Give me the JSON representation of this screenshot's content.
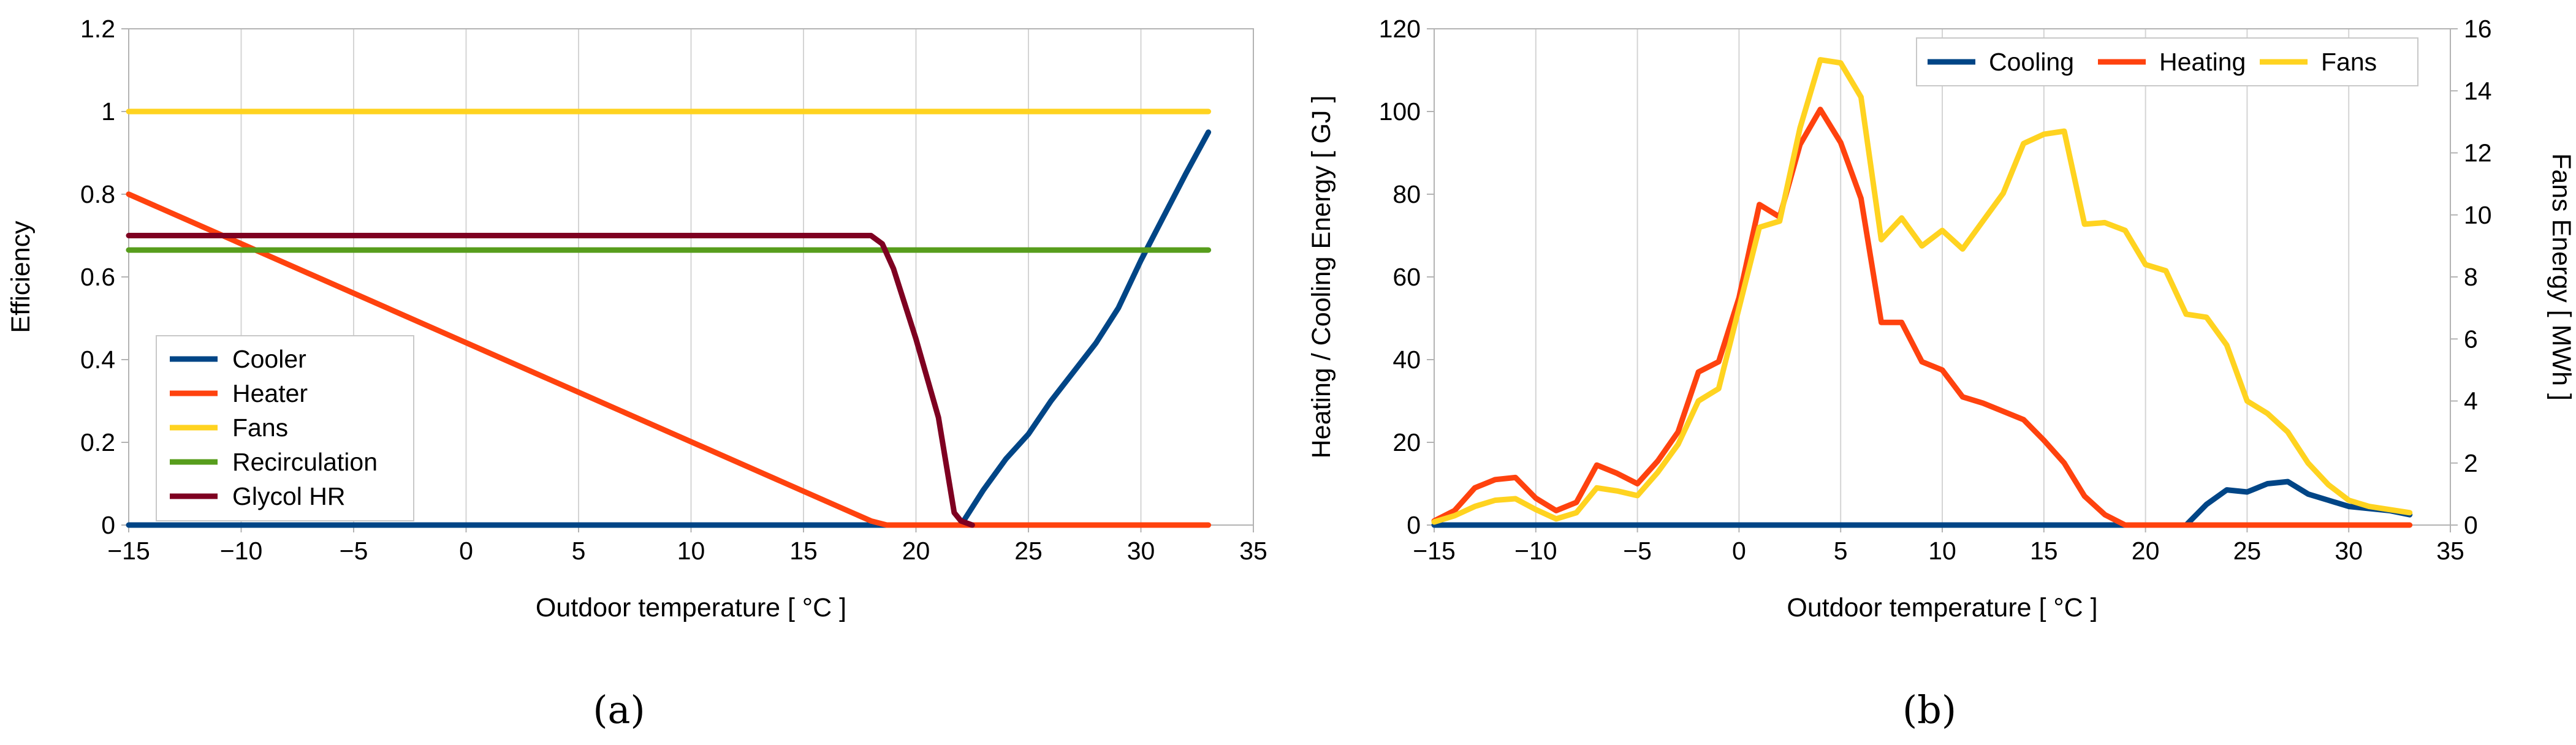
{
  "chart_data": [
    {
      "panel_label": "(a)",
      "type": "line",
      "xlabel": "Outdoor temperature [ °C ]",
      "ylabel": "Efficiency",
      "xlim": [
        -15,
        35
      ],
      "ylim": [
        0,
        1.2
      ],
      "x_ticks": [
        -15,
        -10,
        -5,
        0,
        5,
        10,
        15,
        20,
        25,
        30,
        35
      ],
      "y_ticks": [
        0,
        0.2,
        0.4,
        0.6,
        0.8,
        1,
        1.2
      ],
      "x_tick_labels": [
        "−15",
        "−10",
        "−5",
        "0",
        "5",
        "10",
        "15",
        "20",
        "25",
        "30",
        "35"
      ],
      "y_tick_labels": [
        "0",
        "0.2",
        "0.4",
        "0.6",
        "0.8",
        "1",
        "1.2"
      ],
      "grid": "vertical",
      "legend_position": "bottom-left",
      "series": [
        {
          "name": "Cooler",
          "color": "#004586",
          "x": [
            -15,
            22,
            23,
            24,
            25,
            26,
            27,
            28,
            29,
            30,
            31,
            32,
            33
          ],
          "y": [
            0,
            0,
            0.085,
            0.16,
            0.22,
            0.3,
            0.37,
            0.44,
            0.525,
            0.64,
            0.745,
            0.85,
            0.95
          ]
        },
        {
          "name": "Heater",
          "color": "#ff420e",
          "x": [
            -15,
            18,
            18.7,
            33
          ],
          "y": [
            0.8,
            0.01,
            0,
            0
          ]
        },
        {
          "name": "Fans",
          "color": "#ffd320",
          "x": [
            -15,
            33
          ],
          "y": [
            1,
            1
          ]
        },
        {
          "name": "Recirculation",
          "color": "#579d1c",
          "x": [
            -15,
            33
          ],
          "y": [
            0.665,
            0.665
          ]
        },
        {
          "name": "Glycol HR",
          "color": "#7e0021",
          "x": [
            -15,
            18,
            18.5,
            19,
            20,
            21,
            21.7,
            22,
            22.5
          ],
          "y": [
            0.7,
            0.7,
            0.68,
            0.62,
            0.45,
            0.26,
            0.03,
            0.01,
            0
          ]
        }
      ]
    },
    {
      "panel_label": "(b)",
      "type": "line",
      "xlabel": "Outdoor temperature [ °C ]",
      "ylabel": "Heating / Cooling Energy [ GJ ]",
      "y2label": "Fans Energy [ MWh ]",
      "xlim": [
        -15,
        35
      ],
      "ylim": [
        0,
        120
      ],
      "y2lim": [
        0,
        16
      ],
      "x_ticks": [
        -15,
        -10,
        -5,
        0,
        5,
        10,
        15,
        20,
        25,
        30,
        35
      ],
      "y_ticks": [
        0,
        20,
        40,
        60,
        80,
        100,
        120
      ],
      "y2_ticks": [
        0,
        2,
        4,
        6,
        8,
        10,
        12,
        14,
        16
      ],
      "x_tick_labels": [
        "−15",
        "−10",
        "−5",
        "0",
        "5",
        "10",
        "15",
        "20",
        "25",
        "30",
        "35"
      ],
      "y_tick_labels": [
        "0",
        "20",
        "40",
        "60",
        "80",
        "100",
        "120"
      ],
      "y2_tick_labels": [
        "0",
        "2",
        "4",
        "6",
        "8",
        "10",
        "12",
        "14",
        "16"
      ],
      "grid": "vertical",
      "legend_position": "top-right",
      "series": [
        {
          "name": "Cooling",
          "color": "#004586",
          "axis": "left",
          "x": [
            -15,
            22,
            23,
            24,
            25,
            26,
            27,
            28,
            29,
            30,
            31,
            32,
            33
          ],
          "y": [
            0,
            0,
            5,
            8.5,
            8,
            10,
            10.5,
            7.5,
            6,
            4.5,
            4,
            3.5,
            2.5
          ]
        },
        {
          "name": "Heating",
          "color": "#ff420e",
          "axis": "left",
          "x": [
            -15,
            -14,
            -13,
            -12,
            -11,
            -10,
            -9,
            -8,
            -7,
            -6,
            -5,
            -4,
            -3,
            -2,
            -1,
            0,
            1,
            2,
            3,
            4,
            5,
            6,
            7,
            8,
            9,
            10,
            11,
            12,
            13,
            14,
            15,
            16,
            17,
            18,
            19,
            20,
            33
          ],
          "y": [
            1,
            3.5,
            9,
            11,
            11.5,
            6.5,
            3.5,
            5.5,
            14.5,
            12.5,
            10,
            15.5,
            22.5,
            37,
            39.5,
            55,
            77.5,
            74.5,
            92,
            100.5,
            92.5,
            79,
            49,
            49,
            39.5,
            37.5,
            31,
            29.5,
            27.5,
            25.5,
            20.5,
            15,
            7,
            2.5,
            0,
            0,
            0
          ]
        },
        {
          "name": "Fans",
          "color": "#ffd320",
          "axis": "right",
          "x": [
            -15,
            -14,
            -13,
            -12,
            -11,
            -10,
            -9,
            -8,
            -7,
            -6,
            -5,
            -4,
            -3,
            -2,
            -1,
            0,
            1,
            2,
            3,
            4,
            5,
            6,
            7,
            8,
            9,
            10,
            11,
            12,
            13,
            14,
            15,
            16,
            17,
            18,
            19,
            20,
            21,
            22,
            23,
            24,
            25,
            26,
            27,
            28,
            29,
            30,
            31,
            32,
            33
          ],
          "y": [
            0.1,
            0.3,
            0.6,
            0.8,
            0.85,
            0.5,
            0.2,
            0.4,
            1.2,
            1.1,
            0.95,
            1.7,
            2.6,
            4,
            4.4,
            7,
            9.6,
            9.8,
            12.8,
            15,
            14.9,
            13.8,
            9.2,
            9.9,
            9,
            9.5,
            8.9,
            9.8,
            10.7,
            12.3,
            12.6,
            12.7,
            9.7,
            9.75,
            9.5,
            8.4,
            8.2,
            6.8,
            6.7,
            5.8,
            4,
            3.6,
            3,
            2,
            1.3,
            0.8,
            0.6,
            0.5,
            0.4
          ]
        }
      ]
    }
  ]
}
